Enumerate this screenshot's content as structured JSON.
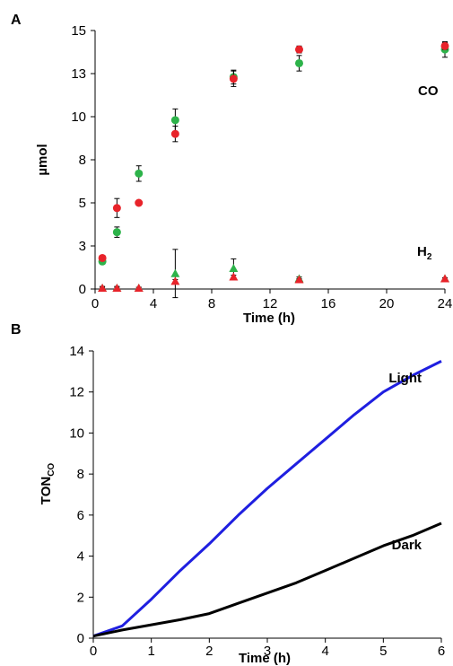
{
  "chart_data": [
    {
      "panel": "A",
      "type": "scatter",
      "xlabel": "Time (h)",
      "ylabel": "µmol",
      "xlim": [
        0,
        24
      ],
      "ylim": [
        0,
        15
      ],
      "xticks": [
        "0",
        "4",
        "8",
        "12",
        "16",
        "20",
        "24"
      ],
      "yticks": [
        "0",
        "3",
        "5",
        "8",
        "10",
        "13",
        "15"
      ],
      "annotations": [
        {
          "text": "CO",
          "x": 23,
          "y": 12.3
        },
        {
          "text": "H",
          "sub": "2",
          "x": 23,
          "y": 2.6
        }
      ],
      "series": [
        {
          "marker": "circle",
          "color": "#2db34a",
          "points": [
            {
              "x": 0.5,
              "y": 1.6,
              "err": 0.15
            },
            {
              "x": 1.5,
              "y": 3.3,
              "err": 0.3
            },
            {
              "x": 3,
              "y": 6.7,
              "err": 0.45
            },
            {
              "x": 5.5,
              "y": 9.8,
              "err": 0.65
            },
            {
              "x": 9.5,
              "y": 12.3,
              "err": 0.4
            },
            {
              "x": 14,
              "y": 13.1,
              "err": 0.45
            },
            {
              "x": 24,
              "y": 13.9,
              "err": 0.45
            }
          ]
        },
        {
          "marker": "circle",
          "color": "#e8232a",
          "points": [
            {
              "x": 0.5,
              "y": 1.8,
              "err": 0.1
            },
            {
              "x": 1.5,
              "y": 4.7,
              "err": 0.55
            },
            {
              "x": 3,
              "y": 5.0,
              "err": 0.1
            },
            {
              "x": 5.5,
              "y": 9.0,
              "err": 0.45
            },
            {
              "x": 9.5,
              "y": 12.2,
              "err": 0.45
            },
            {
              "x": 14,
              "y": 13.9,
              "err": 0.2
            },
            {
              "x": 24,
              "y": 14.1,
              "err": 0.2
            }
          ]
        },
        {
          "marker": "triangle",
          "color": "#2db34a",
          "points": [
            {
              "x": 0.5,
              "y": 0.05,
              "err": 0.1
            },
            {
              "x": 1.5,
              "y": 0.05,
              "err": 0.1
            },
            {
              "x": 3,
              "y": 0.05,
              "err": 0.05
            },
            {
              "x": 5.5,
              "y": 0.9,
              "err": 1.4
            },
            {
              "x": 9.5,
              "y": 1.2,
              "err": 0.55
            },
            {
              "x": 14,
              "y": 0.6,
              "err": 0.1
            },
            {
              "x": 24,
              "y": 0.6,
              "err": 0.05
            }
          ]
        },
        {
          "marker": "triangle",
          "color": "#e8232a",
          "points": [
            {
              "x": 0.5,
              "y": 0.05,
              "err": 0.05
            },
            {
              "x": 1.5,
              "y": 0.05,
              "err": 0.05
            },
            {
              "x": 3,
              "y": 0.05,
              "err": 0.05
            },
            {
              "x": 5.5,
              "y": 0.45,
              "err": 0.1
            },
            {
              "x": 9.5,
              "y": 0.7,
              "err": 0.1
            },
            {
              "x": 14,
              "y": 0.55,
              "err": 0.05
            },
            {
              "x": 24,
              "y": 0.6,
              "err": 0.05
            }
          ]
        }
      ]
    },
    {
      "panel": "B",
      "type": "line",
      "xlabel": "Time (h)",
      "ylabel": "TON",
      "ylabel_sub": "CO",
      "xlim": [
        0,
        6
      ],
      "ylim": [
        0,
        14
      ],
      "xticks": [
        "0",
        "1",
        "2",
        "3",
        "4",
        "5",
        "6"
      ],
      "yticks": [
        "0",
        "2",
        "4",
        "6",
        "8",
        "10",
        "12",
        "14"
      ],
      "series": [
        {
          "name": "Light",
          "color": "#1f1fe0",
          "x": [
            0,
            0.5,
            1,
            1.5,
            2,
            2.5,
            3,
            3.5,
            4,
            4.5,
            5,
            5.5,
            6
          ],
          "y": [
            0.1,
            0.6,
            1.9,
            3.3,
            4.6,
            6.0,
            7.3,
            8.5,
            9.7,
            10.9,
            12.0,
            12.8,
            13.5
          ]
        },
        {
          "name": "Dark",
          "color": "#000000",
          "x": [
            0,
            0.5,
            1,
            1.5,
            2,
            2.5,
            3,
            3.5,
            4,
            4.5,
            5,
            5.5,
            6
          ],
          "y": [
            0.1,
            0.4,
            0.65,
            0.9,
            1.2,
            1.7,
            2.2,
            2.7,
            3.3,
            3.9,
            4.5,
            5.0,
            5.6
          ]
        }
      ]
    }
  ]
}
